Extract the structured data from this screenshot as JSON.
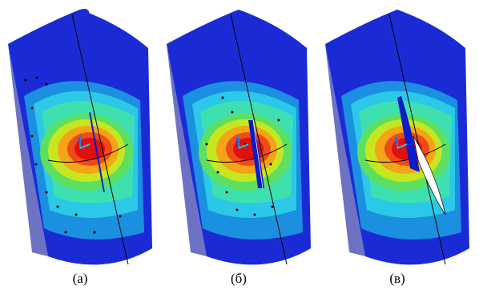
{
  "panels": [
    {
      "id": "a",
      "caption": "(а)",
      "crack": "none"
    },
    {
      "id": "b",
      "caption": "(б)",
      "crack": "narrow"
    },
    {
      "id": "c",
      "caption": "(в)",
      "crack": "open"
    }
  ],
  "colors": {
    "shell": "#1a2bd6",
    "shell_dark": "#0b1699",
    "shell_light": "#2f4cf0",
    "contours": [
      "#1b8fe0",
      "#2bc8e8",
      "#3fe0b0",
      "#5de060",
      "#c8e620",
      "#f4a416",
      "#ef4b18",
      "#e01010"
    ],
    "crack_band": "#0a1cc8",
    "lines": "#000000",
    "background": "#ffffff"
  },
  "icons": {
    "triad": "coordinate-triad-icon",
    "nodes": "node-marker-icon"
  }
}
